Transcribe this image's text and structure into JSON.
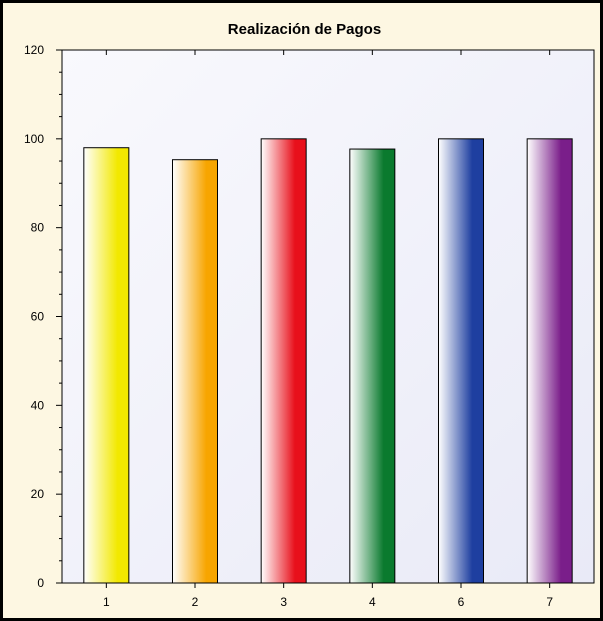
{
  "chart_data": {
    "type": "bar",
    "title": "Realización de Pagos",
    "xlabel": "",
    "ylabel": "",
    "categories": [
      "1",
      "2",
      "3",
      "4",
      "6",
      "7"
    ],
    "values": [
      98,
      95.3,
      100,
      97.7,
      100,
      100
    ],
    "ylim": [
      0,
      120
    ],
    "yticks": [
      "0",
      "20",
      "40",
      "60",
      "80",
      "100",
      "120"
    ],
    "grid": false,
    "legend": "none",
    "bar_colors": [
      "#f2e800",
      "#f7a500",
      "#e8101b",
      "#0a7a2e",
      "#1e3fa0",
      "#7a1e8a"
    ],
    "plot_background": "#e9eaf7"
  }
}
